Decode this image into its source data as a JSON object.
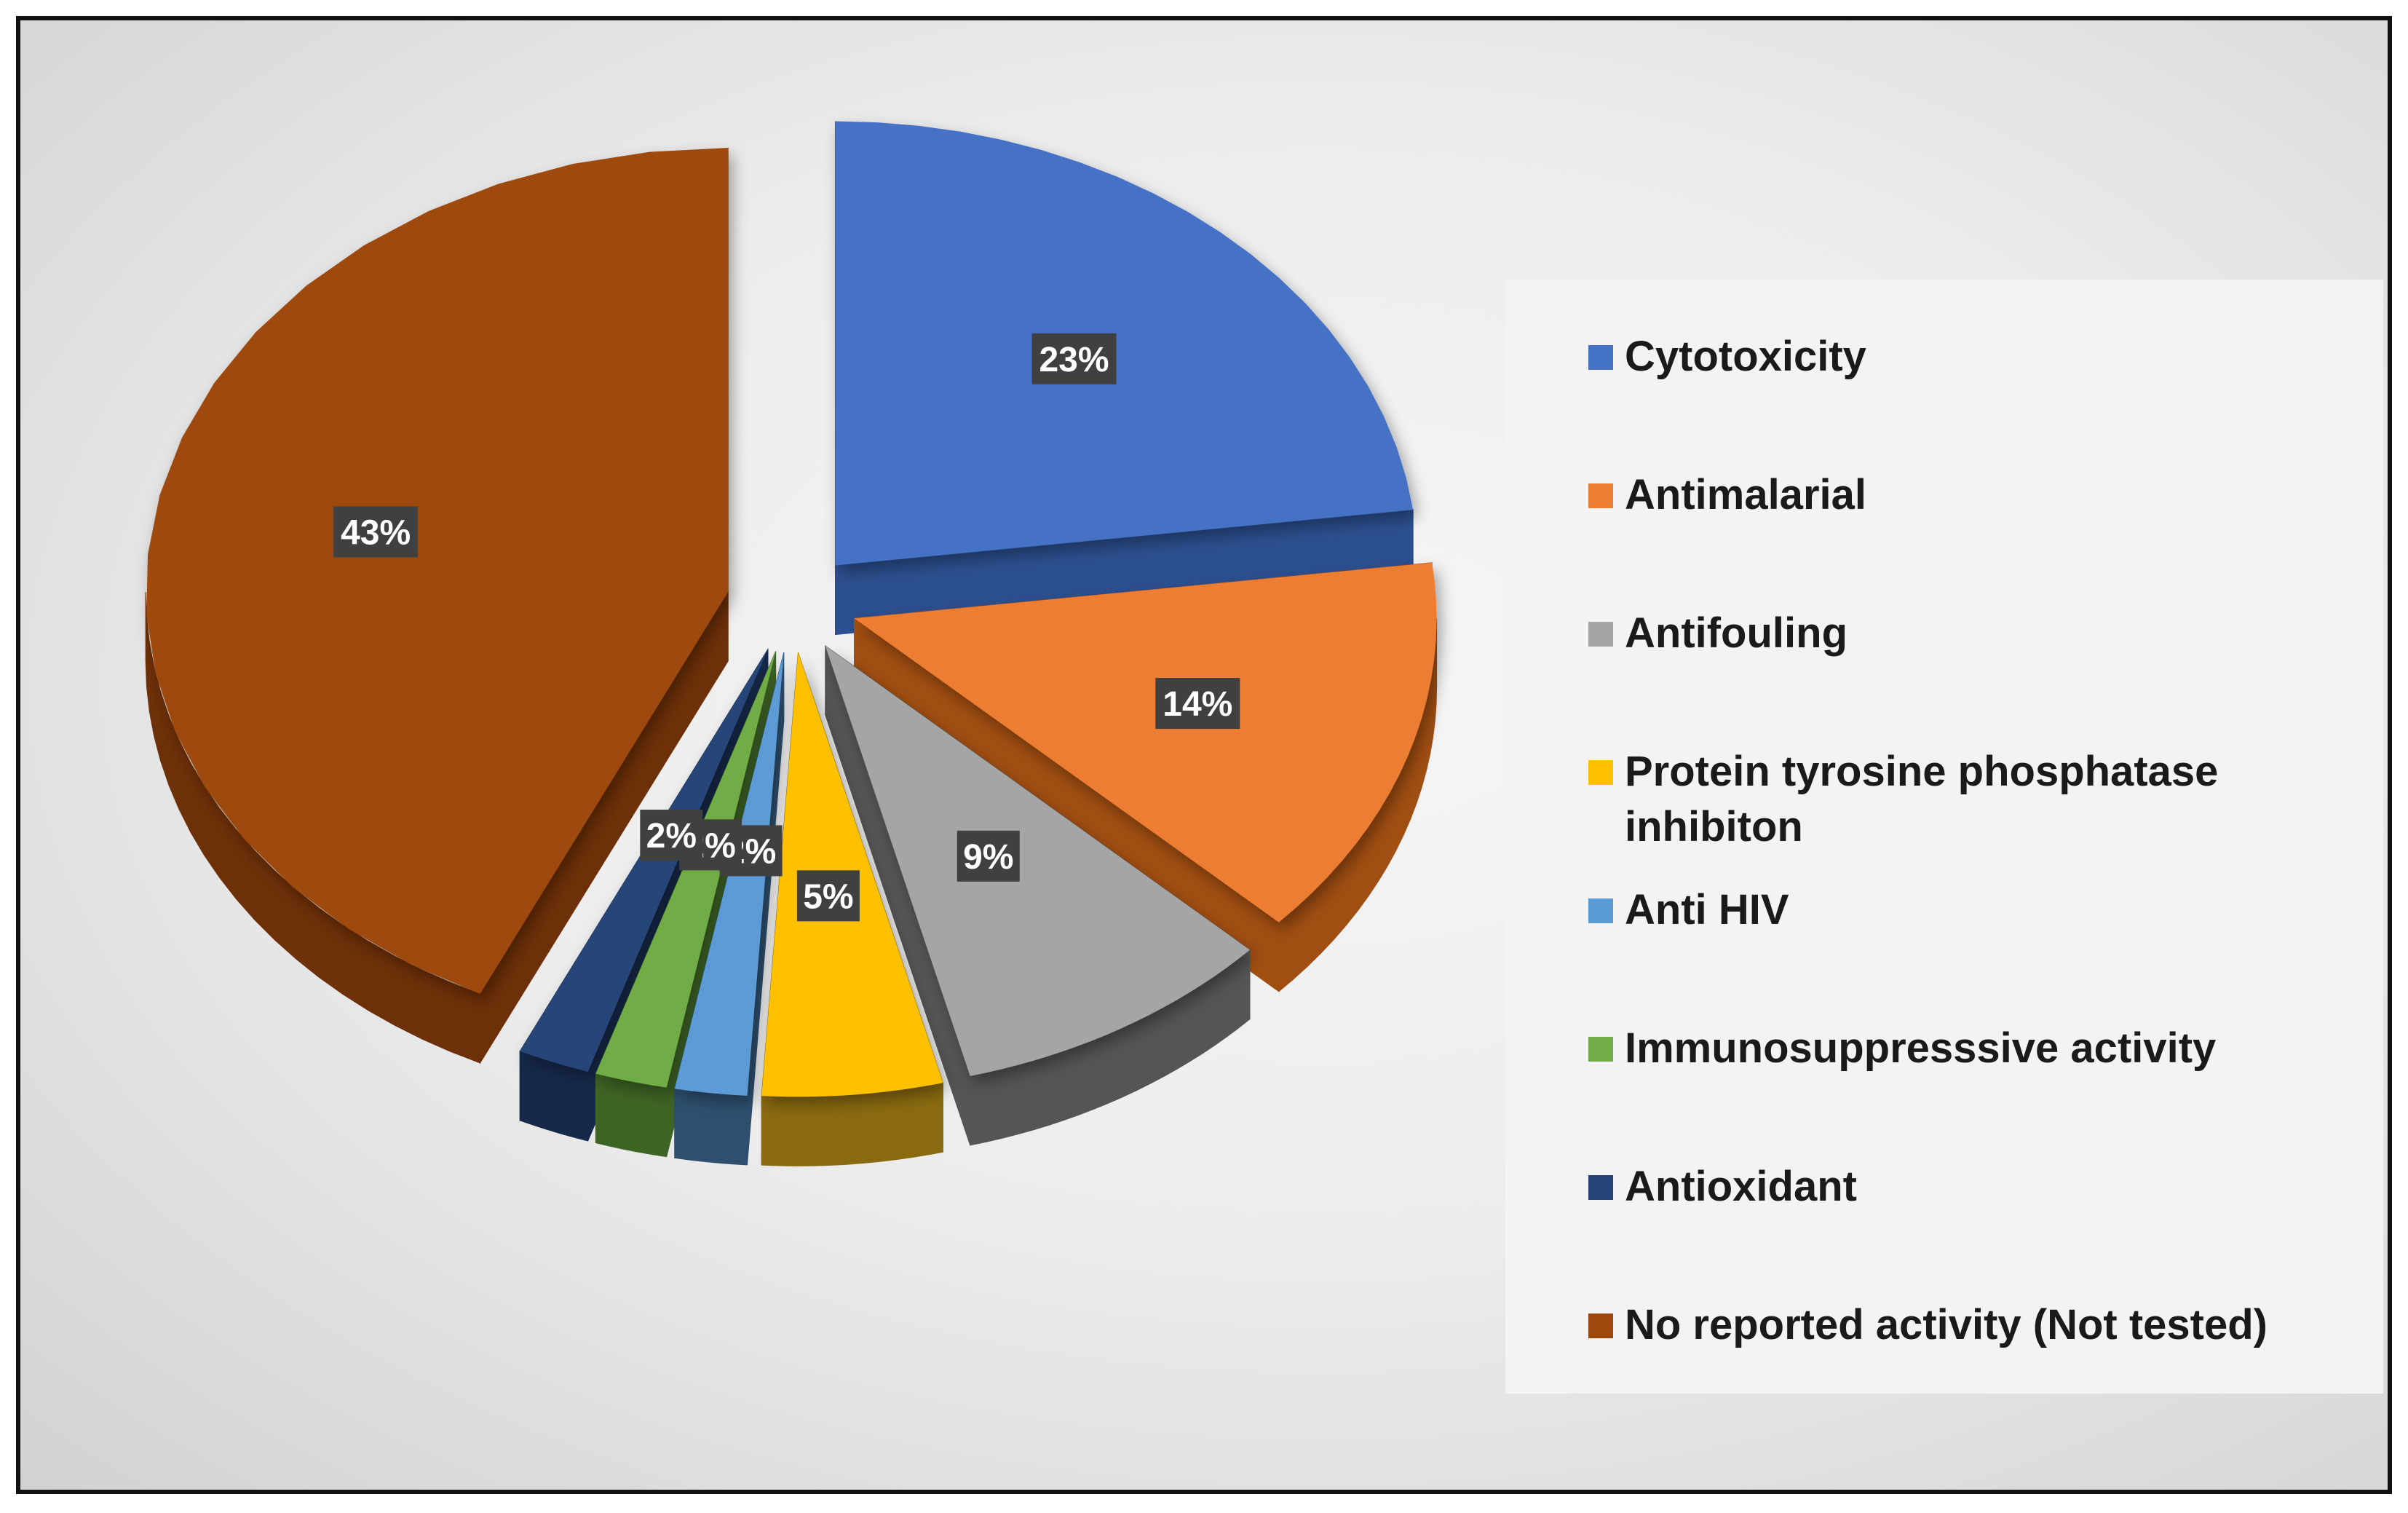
{
  "chart_data": {
    "type": "pie",
    "title": "",
    "start_angle_deg": 0,
    "direction": "clockwise",
    "slices": [
      {
        "label": "Cytotoxicity",
        "value": 23,
        "display": "23%",
        "color": "#4472C4",
        "side": "#2C4F8F"
      },
      {
        "label": "Antimalarial",
        "value": 14,
        "display": "14%",
        "color": "#ED7D31",
        "side": "#A14E12"
      },
      {
        "label": "Antifouling",
        "value": 9,
        "display": "9%",
        "color": "#A5A5A5",
        "side": "#555555"
      },
      {
        "label": "Protein tyrosine phosphatase inhibiton",
        "value": 5,
        "display": "5%",
        "color": "#FFC000",
        "side": "#8A6A10"
      },
      {
        "label": "Anti HIV",
        "value": 2,
        "display": "2%",
        "color": "#5B9BD5",
        "side": "#2E4F6E"
      },
      {
        "label": "Immunosuppresssive activity",
        "value": 2,
        "display": "2%",
        "color": "#70AD47",
        "side": "#3E6424"
      },
      {
        "label": "Antioxidant",
        "value": 2,
        "display": "2%",
        "color": "#264478",
        "side": "#16294A"
      },
      {
        "label": "No reported activity (Not tested)",
        "value": 43,
        "display": "43%",
        "color": "#9E480E",
        "side": "#6E3008"
      }
    ],
    "legend_position": "right",
    "data_labels": "percentage"
  },
  "legend": {
    "items": [
      {
        "label": "Cytotoxicity",
        "color": "#4472C4"
      },
      {
        "label": "Antimalarial",
        "color": "#ED7D31"
      },
      {
        "label": "Antifouling",
        "color": "#A5A5A5"
      },
      {
        "label": "Protein tyrosine phosphatase inhibiton",
        "color": "#FFC000"
      },
      {
        "label": "Anti HIV",
        "color": "#5B9BD5"
      },
      {
        "label": "Immunosuppresssive activity",
        "color": "#70AD47"
      },
      {
        "label": "Antioxidant",
        "color": "#264478"
      },
      {
        "label": "No reported activity (Not tested)",
        "color": "#9E480E"
      }
    ]
  }
}
